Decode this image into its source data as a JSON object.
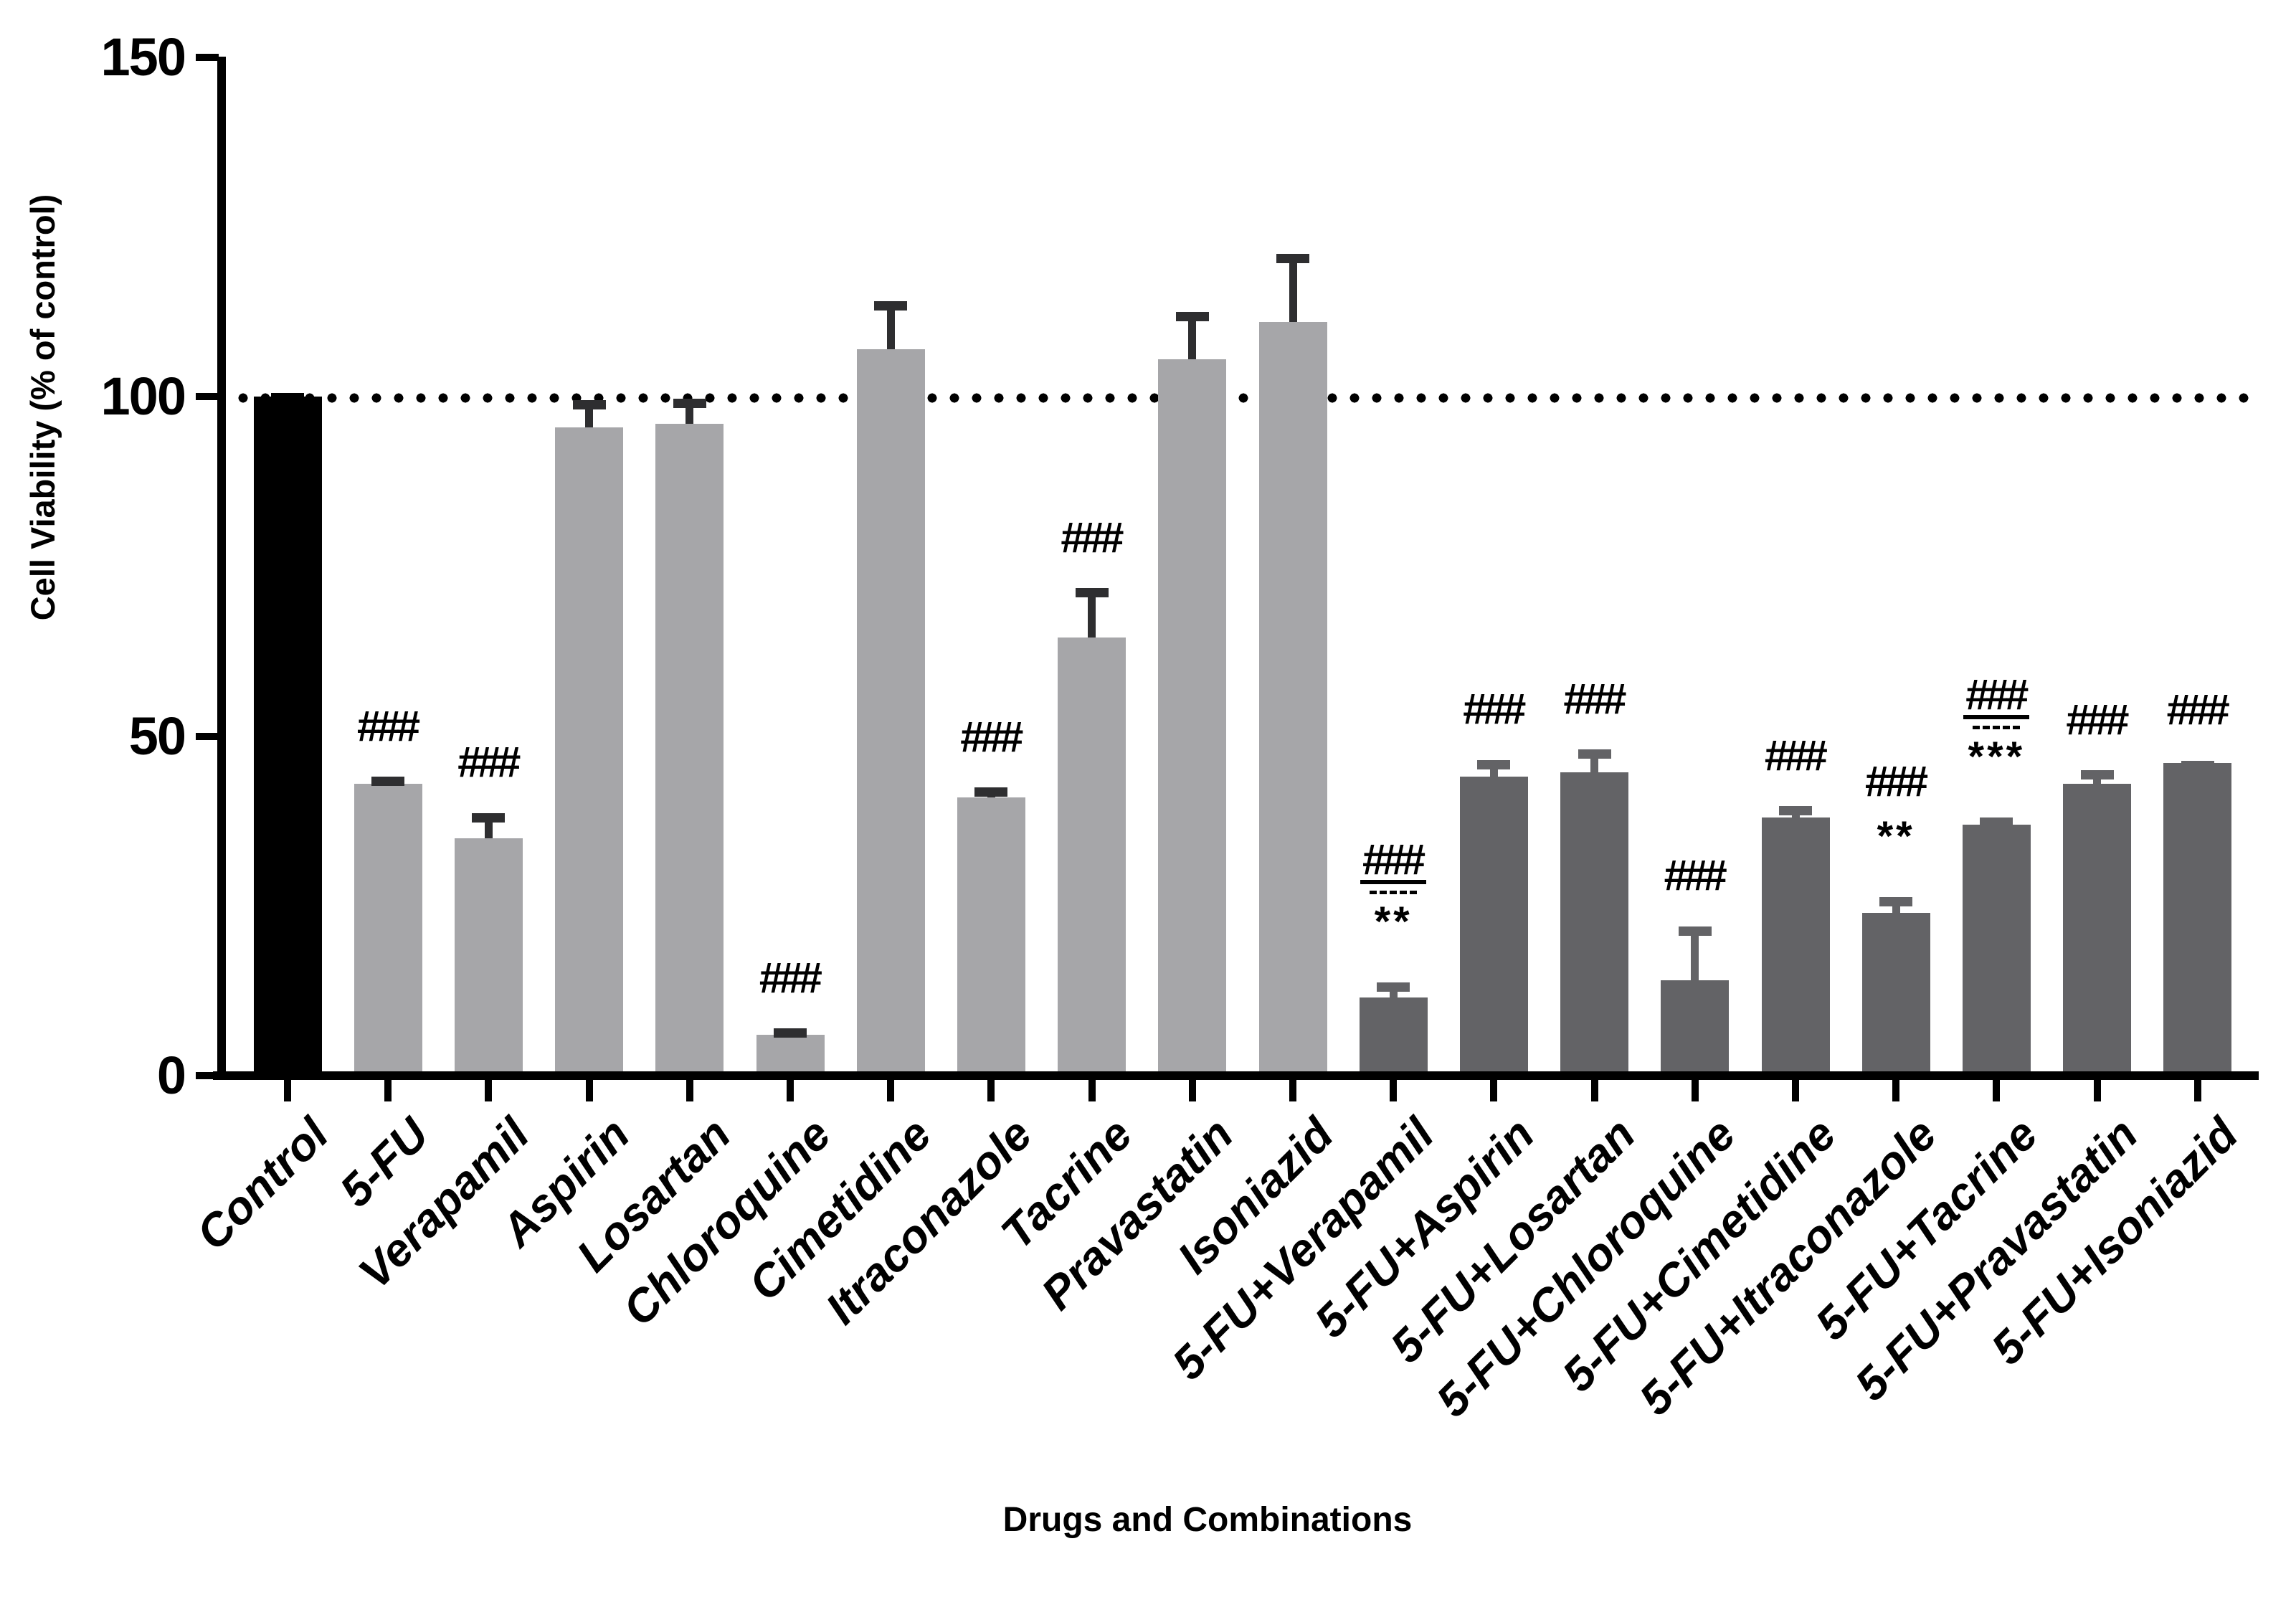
{
  "figure": {
    "background": "#ffffff"
  },
  "chart_data": {
    "type": "bar",
    "title": "",
    "xlabel": "Drugs and Combinations",
    "ylabel": "Cell Viability (% of control)",
    "ylim": [
      0,
      150
    ],
    "yticks": [
      0,
      50,
      100,
      150
    ],
    "grid": false,
    "legend": false,
    "reference_line": {
      "y": 100,
      "style": "dotted"
    },
    "categories": [
      "Control",
      "5-FU",
      "Verapamil",
      "Aspirin",
      "Losartan",
      "Chloroquine",
      "Cimetidine",
      "Itraconazole",
      "Tacrine",
      "Pravastatin",
      "Isoniazid",
      "5-FU+Verapamil",
      "5-FU+Aspirin",
      "5-FU+Losartan",
      "5-FU+Chloroquine",
      "5-FU+Cimetidine",
      "5-FU+Itraconazole",
      "5-FU+Tacrine",
      "5-FU+Pravastatin",
      "5-FU+Isoniazid"
    ],
    "bars": [
      {
        "label": "Control",
        "value": 100,
        "error": 0.5,
        "group": "control",
        "hash": "",
        "hash_underline": false,
        "stars": ""
      },
      {
        "label": "5-FU",
        "value": 43,
        "error": 1,
        "group": "single",
        "hash": "###",
        "hash_underline": false,
        "stars": ""
      },
      {
        "label": "Verapamil",
        "value": 35,
        "error": 3.7,
        "group": "single",
        "hash": "###",
        "hash_underline": false,
        "stars": ""
      },
      {
        "label": "Aspirin",
        "value": 95.5,
        "error": 4,
        "group": "single",
        "hash": "",
        "hash_underline": false,
        "stars": ""
      },
      {
        "label": "Losartan",
        "value": 96,
        "error": 3.7,
        "group": "single",
        "hash": "",
        "hash_underline": false,
        "stars": ""
      },
      {
        "label": "Chloroquine",
        "value": 6,
        "error": 1,
        "group": "single",
        "hash": "###",
        "hash_underline": false,
        "stars": ""
      },
      {
        "label": "Cimetidine",
        "value": 107,
        "error": 7,
        "group": "single",
        "hash": "",
        "hash_underline": false,
        "stars": ""
      },
      {
        "label": "Itraconazole",
        "value": 41,
        "error": 1.4,
        "group": "single",
        "hash": "###",
        "hash_underline": false,
        "stars": ""
      },
      {
        "label": "Tacrine",
        "value": 64.5,
        "error": 7.3,
        "group": "single",
        "hash": "###",
        "hash_underline": false,
        "stars": ""
      },
      {
        "label": "Pravastatin",
        "value": 105.5,
        "error": 7,
        "group": "single",
        "hash": "",
        "hash_underline": false,
        "stars": ""
      },
      {
        "label": "Isoniazid",
        "value": 111,
        "error": 10,
        "group": "single",
        "hash": "",
        "hash_underline": false,
        "stars": ""
      },
      {
        "label": "5-FU+Verapamil",
        "value": 11.5,
        "error": 2.2,
        "group": "combo",
        "hash": "###",
        "hash_underline": true,
        "stars": "**"
      },
      {
        "label": "5-FU+Aspirin",
        "value": 44,
        "error": 2.5,
        "group": "combo",
        "hash": "###",
        "hash_underline": false,
        "stars": ""
      },
      {
        "label": "5-FU+Losartan",
        "value": 44.7,
        "error": 3.3,
        "group": "combo",
        "hash": "###",
        "hash_underline": false,
        "stars": ""
      },
      {
        "label": "5-FU+Chloroquine",
        "value": 14,
        "error": 8,
        "group": "combo",
        "hash": "###",
        "hash_underline": false,
        "stars": ""
      },
      {
        "label": "5-FU+Cimetidine",
        "value": 38,
        "error": 1.7,
        "group": "combo",
        "hash": "###",
        "hash_underline": false,
        "stars": ""
      },
      {
        "label": "5-FU+Itraconazole",
        "value": 24,
        "error": 2.3,
        "group": "combo",
        "hash": "###",
        "hash_underline": false,
        "stars": "**"
      },
      {
        "label": "5-FU+Tacrine",
        "value": 37,
        "error": 1,
        "group": "combo",
        "hash": "###",
        "hash_underline": true,
        "stars": "***"
      },
      {
        "label": "5-FU+Pravastatin",
        "value": 43,
        "error": 2,
        "group": "combo",
        "hash": "###",
        "hash_underline": false,
        "stars": ""
      },
      {
        "label": "5-FU+Isoniazid",
        "value": 46,
        "error": 0.4,
        "group": "combo",
        "hash": "###",
        "hash_underline": false,
        "stars": ""
      }
    ]
  },
  "colors": {
    "control_bar": "#000000",
    "single_bar": "#a6a6a9",
    "combo_bar": "#636366",
    "error_on_light": "#2e2e30",
    "error_on_control": "#000000",
    "axis": "#000000",
    "annotation": "#000000",
    "reference_line": "#000000"
  }
}
